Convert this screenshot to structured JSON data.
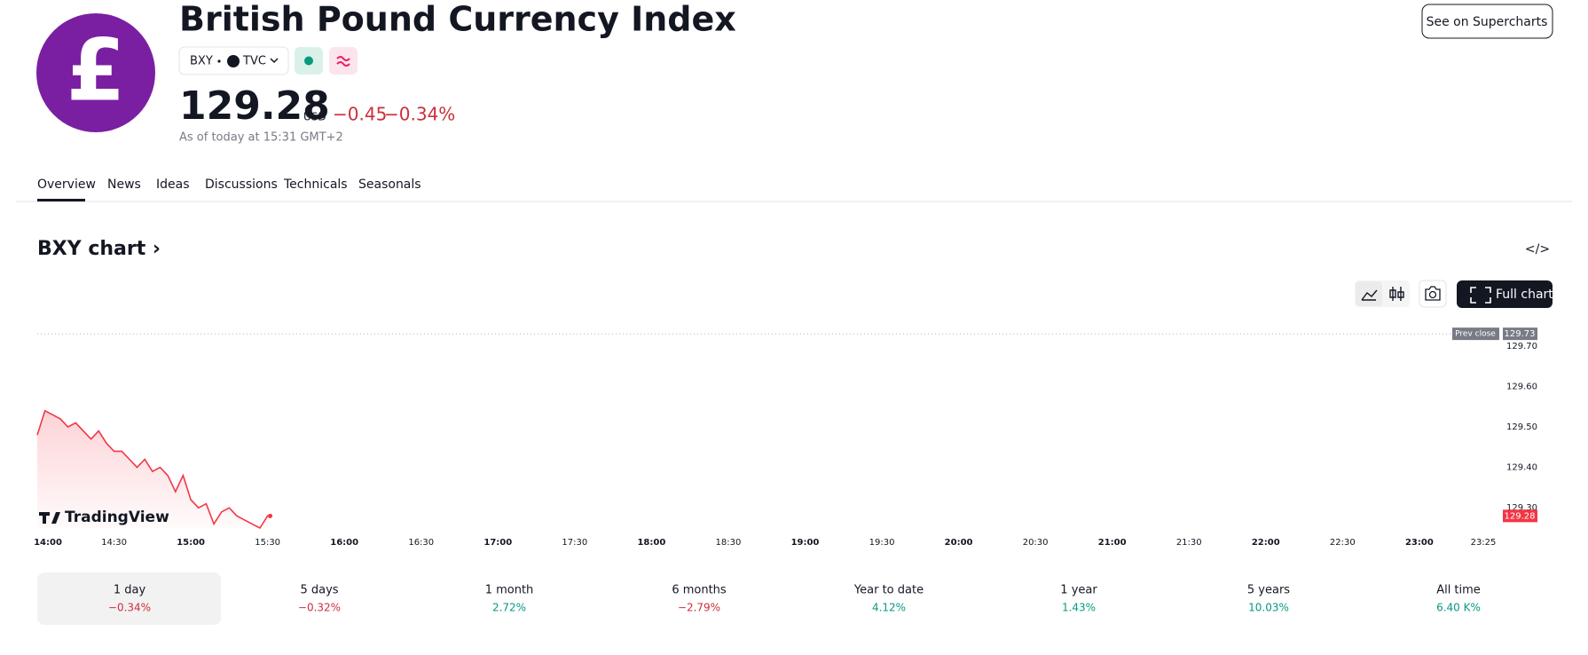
{
  "header": {
    "logo_symbol": "£",
    "title": "British Pound Currency Index",
    "symbol": "BXY",
    "exchange": "TVC",
    "price": "129.28",
    "currency": "USD",
    "change": "−0.45",
    "change_percent": "−0.34%",
    "as_of": "As of today at 15:31 GMT+2",
    "supercharts_button": "See on Supercharts"
  },
  "tabs": [
    "Overview",
    "News",
    "Ideas",
    "Discussions",
    "Technicals",
    "Seasonals"
  ],
  "chart_heading": "BXY chart ›",
  "embed_icon": "</>",
  "full_chart_button": "Full chart",
  "chart_data": {
    "type": "line",
    "watermark": "TradingView",
    "color": "#f23645",
    "x": [
      "14:00",
      "14:03",
      "14:06",
      "14:09",
      "14:12",
      "14:15",
      "14:18",
      "14:21",
      "14:24",
      "14:27",
      "14:30",
      "14:33",
      "14:36",
      "14:39",
      "14:42",
      "14:45",
      "14:48",
      "14:51",
      "14:54",
      "14:57",
      "15:00",
      "15:03",
      "15:06",
      "15:09",
      "15:12",
      "15:15",
      "15:18",
      "15:21",
      "15:24",
      "15:27",
      "15:30",
      "15:31"
    ],
    "values": [
      129.48,
      129.54,
      129.53,
      129.52,
      129.5,
      129.51,
      129.49,
      129.47,
      129.49,
      129.46,
      129.44,
      129.44,
      129.42,
      129.4,
      129.42,
      129.39,
      129.4,
      129.38,
      129.34,
      129.38,
      129.32,
      129.3,
      129.31,
      129.26,
      129.29,
      129.3,
      129.28,
      129.27,
      129.26,
      129.25,
      129.28,
      129.28
    ],
    "xlim": [
      "14:00",
      "23:25"
    ],
    "xticks": [
      "14:00",
      "14:30",
      "15:00",
      "15:30",
      "16:00",
      "16:30",
      "17:00",
      "17:30",
      "18:00",
      "18:30",
      "19:00",
      "19:30",
      "20:00",
      "20:30",
      "21:00",
      "21:30",
      "22:00",
      "22:30",
      "23:00",
      "23:25"
    ],
    "ylim": [
      129.25,
      129.75
    ],
    "yticks": [
      {
        "value": 129.3,
        "label": "129.30"
      },
      {
        "value": 129.4,
        "label": "129.40"
      },
      {
        "value": 129.5,
        "label": "129.50"
      },
      {
        "value": 129.6,
        "label": "129.60"
      },
      {
        "value": 129.7,
        "label": "129.70"
      }
    ],
    "prev_close_label": "Prev close",
    "prev_close": 129.73,
    "last": 129.28
  },
  "periods": {
    "labels": [
      "1 day",
      "5 days",
      "1 month",
      "6 months",
      "Year to date",
      "1 year",
      "5 years",
      "All time"
    ],
    "values": [
      -0.34,
      -0.32,
      2.72,
      -2.79,
      4.12,
      1.43,
      10.03,
      6400
    ],
    "value_labels": [
      "−0.34%",
      "−0.32%",
      "2.72%",
      "−2.79%",
      "4.12%",
      "1.43%",
      "10.03%",
      "6.40 K%"
    ]
  }
}
